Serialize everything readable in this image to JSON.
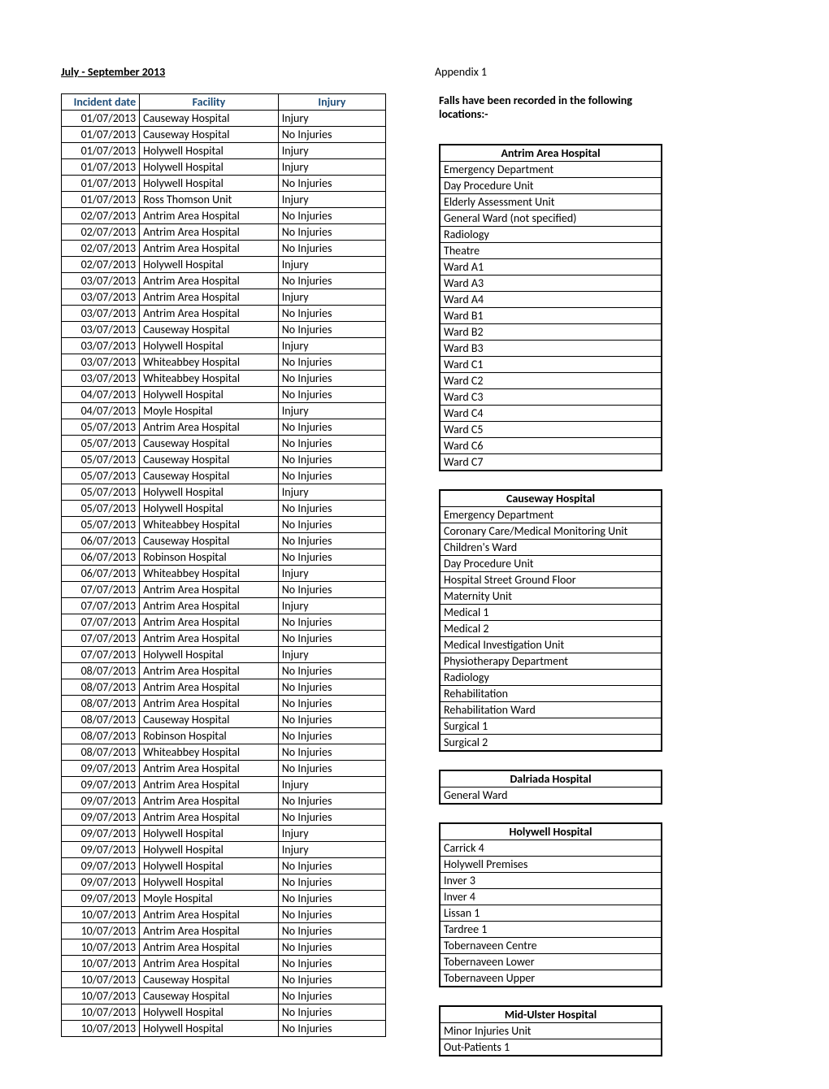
{
  "header": {
    "period": "July - September 2013",
    "appendix": "Appendix 1",
    "falls_intro": "Falls have been recorded in the following locations:-"
  },
  "main_table": {
    "columns": [
      "Incident date",
      "Facility",
      "Injury"
    ],
    "rows": [
      [
        "01/07/2013",
        "Causeway Hospital",
        "Injury"
      ],
      [
        "01/07/2013",
        "Causeway Hospital",
        "No Injuries"
      ],
      [
        "01/07/2013",
        "Holywell Hospital",
        "Injury"
      ],
      [
        "01/07/2013",
        "Holywell Hospital",
        "Injury"
      ],
      [
        "01/07/2013",
        "Holywell Hospital",
        "No Injuries"
      ],
      [
        "01/07/2013",
        "Ross Thomson Unit",
        "Injury"
      ],
      [
        "02/07/2013",
        "Antrim Area Hospital",
        "No Injuries"
      ],
      [
        "02/07/2013",
        "Antrim Area Hospital",
        "No Injuries"
      ],
      [
        "02/07/2013",
        "Antrim Area Hospital",
        "No Injuries"
      ],
      [
        "02/07/2013",
        "Holywell Hospital",
        "Injury"
      ],
      [
        "03/07/2013",
        "Antrim Area Hospital",
        "No Injuries"
      ],
      [
        "03/07/2013",
        "Antrim Area Hospital",
        "Injury"
      ],
      [
        "03/07/2013",
        "Antrim Area Hospital",
        "No Injuries"
      ],
      [
        "03/07/2013",
        "Causeway Hospital",
        "No Injuries"
      ],
      [
        "03/07/2013",
        "Holywell Hospital",
        "Injury"
      ],
      [
        "03/07/2013",
        "Whiteabbey Hospital",
        "No Injuries"
      ],
      [
        "03/07/2013",
        "Whiteabbey Hospital",
        "No Injuries"
      ],
      [
        "04/07/2013",
        "Holywell Hospital",
        "No Injuries"
      ],
      [
        "04/07/2013",
        "Moyle Hospital",
        "Injury"
      ],
      [
        "05/07/2013",
        "Antrim Area Hospital",
        "No Injuries"
      ],
      [
        "05/07/2013",
        "Causeway Hospital",
        "No Injuries"
      ],
      [
        "05/07/2013",
        "Causeway Hospital",
        "No Injuries"
      ],
      [
        "05/07/2013",
        "Causeway Hospital",
        "No Injuries"
      ],
      [
        "05/07/2013",
        "Holywell Hospital",
        "Injury"
      ],
      [
        "05/07/2013",
        "Holywell Hospital",
        "No Injuries"
      ],
      [
        "05/07/2013",
        "Whiteabbey Hospital",
        "No Injuries"
      ],
      [
        "06/07/2013",
        "Causeway Hospital",
        "No Injuries"
      ],
      [
        "06/07/2013",
        "Robinson Hospital",
        "No Injuries"
      ],
      [
        "06/07/2013",
        "Whiteabbey Hospital",
        "Injury"
      ],
      [
        "07/07/2013",
        "Antrim Area Hospital",
        "No Injuries"
      ],
      [
        "07/07/2013",
        "Antrim Area Hospital",
        "Injury"
      ],
      [
        "07/07/2013",
        "Antrim Area Hospital",
        "No Injuries"
      ],
      [
        "07/07/2013",
        "Antrim Area Hospital",
        "No Injuries"
      ],
      [
        "07/07/2013",
        "Holywell Hospital",
        "Injury"
      ],
      [
        "08/07/2013",
        "Antrim Area Hospital",
        "No Injuries"
      ],
      [
        "08/07/2013",
        "Antrim Area Hospital",
        "No Injuries"
      ],
      [
        "08/07/2013",
        "Antrim Area Hospital",
        "No Injuries"
      ],
      [
        "08/07/2013",
        "Causeway Hospital",
        "No Injuries"
      ],
      [
        "08/07/2013",
        "Robinson Hospital",
        "No Injuries"
      ],
      [
        "08/07/2013",
        "Whiteabbey Hospital",
        "No Injuries"
      ],
      [
        "09/07/2013",
        "Antrim Area Hospital",
        "No Injuries"
      ],
      [
        "09/07/2013",
        "Antrim Area Hospital",
        "Injury"
      ],
      [
        "09/07/2013",
        "Antrim Area Hospital",
        "No Injuries"
      ],
      [
        "09/07/2013",
        "Antrim Area Hospital",
        "No Injuries"
      ],
      [
        "09/07/2013",
        "Holywell Hospital",
        "Injury"
      ],
      [
        "09/07/2013",
        "Holywell Hospital",
        "Injury"
      ],
      [
        "09/07/2013",
        "Holywell Hospital",
        "No Injuries"
      ],
      [
        "09/07/2013",
        "Holywell Hospital",
        "No Injuries"
      ],
      [
        "09/07/2013",
        "Moyle Hospital",
        "No Injuries"
      ],
      [
        "10/07/2013",
        "Antrim Area Hospital",
        "No Injuries"
      ],
      [
        "10/07/2013",
        "Antrim Area Hospital",
        "No Injuries"
      ],
      [
        "10/07/2013",
        "Antrim Area Hospital",
        "No Injuries"
      ],
      [
        "10/07/2013",
        "Antrim Area Hospital",
        "No Injuries"
      ],
      [
        "10/07/2013",
        "Causeway Hospital",
        "No Injuries"
      ],
      [
        "10/07/2013",
        "Causeway Hospital",
        "No Injuries"
      ],
      [
        "10/07/2013",
        "Holywell Hospital",
        "No Injuries"
      ],
      [
        "10/07/2013",
        "Holywell Hospital",
        "No Injuries"
      ]
    ]
  },
  "location_boxes": [
    {
      "title": "Antrim Area Hospital",
      "items": [
        "Emergency Department",
        "Day Procedure Unit",
        "Elderly Assessment Unit",
        "General Ward (not specified)",
        "Radiology",
        "Theatre",
        "Ward A1",
        "Ward A3",
        "Ward A4",
        "Ward B1",
        "Ward B2",
        "Ward B3",
        "Ward C1",
        "Ward C2",
        "Ward C3",
        "Ward C4",
        "Ward C5",
        "Ward C6",
        "Ward C7"
      ]
    },
    {
      "title": "Causeway Hospital",
      "items": [
        "Emergency Department",
        "Coronary Care/Medical Monitoring Unit",
        "Children's Ward",
        "Day Procedure Unit",
        "Hospital Street Ground Floor",
        "Maternity Unit",
        "Medical 1",
        "Medical 2",
        "Medical Investigation Unit",
        "Physiotherapy Department",
        "Radiology",
        "Rehabilitation",
        "Rehabilitation Ward",
        "Surgical 1",
        "Surgical 2"
      ]
    },
    {
      "title": "Dalriada Hospital",
      "items": [
        "General Ward"
      ]
    },
    {
      "title": "Holywell Hospital",
      "items": [
        "Carrick 4",
        "Holywell Premises",
        "Inver 3",
        "Inver 4",
        "Lissan 1",
        "Tardree 1",
        "Tobernaveen Centre",
        "Tobernaveen Lower",
        "Tobernaveen Upper"
      ]
    },
    {
      "title": "Mid-Ulster Hospital",
      "items": [
        "Minor Injuries Unit",
        "Out-Patients 1"
      ]
    }
  ]
}
